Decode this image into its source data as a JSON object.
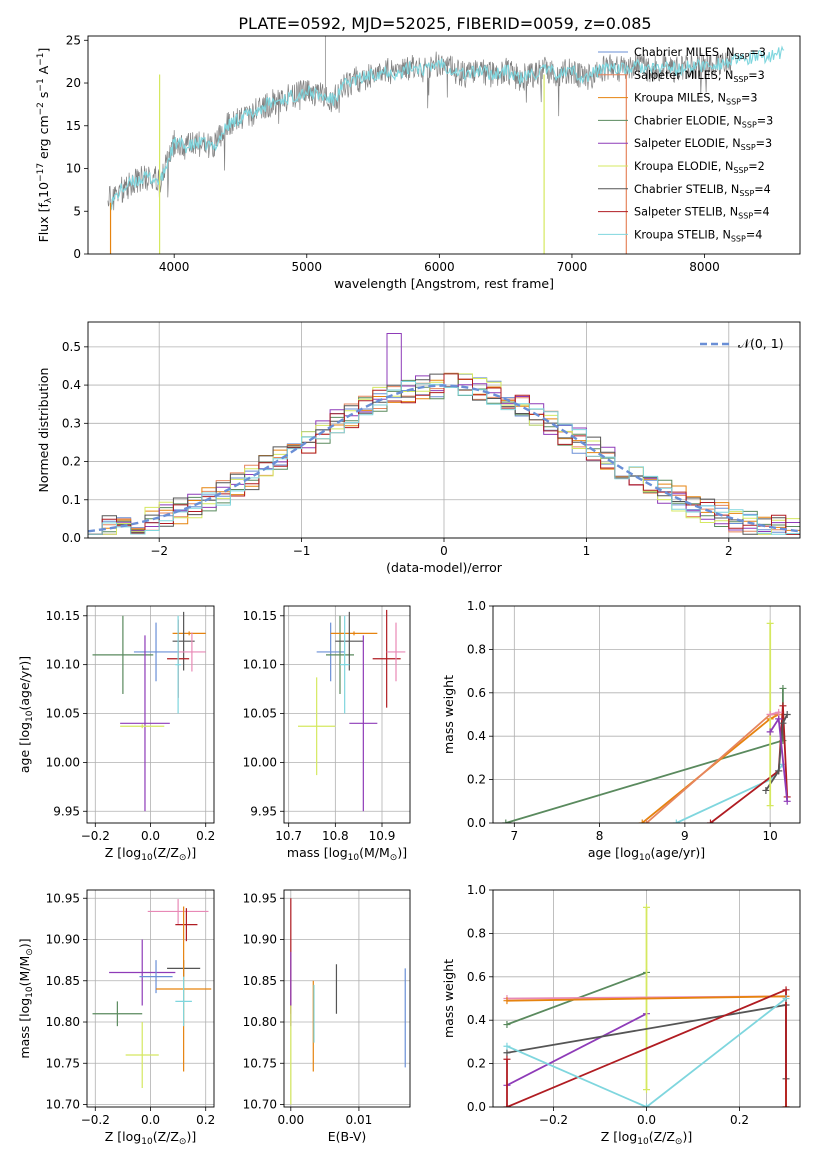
{
  "figure": {
    "title": "PLATE=0592, MJD=52025, FIBERID=0059, z=0.085",
    "colors": {
      "chabrier_miles": "#6a8fd6",
      "salpeter_miles": "#e6855e",
      "kroupa_miles": "#e6830f",
      "chabrier_elodie": "#5a8a5e",
      "salpeter_elodie": "#8e3bb8",
      "kroupa_elodie": "#d5e860",
      "chabrier_stelib": "#555555",
      "salpeter_stelib": "#b01c22",
      "kroupa_stelib": "#7fd6de",
      "data": "#808080",
      "normal": "#6a8fd6",
      "pink": "#e889b6"
    }
  },
  "chart_data": [
    {
      "id": "spectrum",
      "type": "line",
      "xlabel": "wavelength [Angstrom, rest frame]",
      "ylabel": "Flux [f",
      "ylabel_parts": [
        "Flux [f",
        "λ",
        "10",
        "−17",
        " erg cm",
        "−2",
        " s",
        "−1",
        " A",
        "−1",
        "]"
      ],
      "xlim": [
        3350,
        8720
      ],
      "ylim": [
        0,
        25.5
      ],
      "xticks": [
        "4000",
        "5000",
        "6000",
        "7000",
        "8000"
      ],
      "yticks": [
        "0",
        "5",
        "10",
        "15",
        "20",
        "25"
      ],
      "legend_position": "top-right",
      "legend": [
        {
          "label": "Chabrier MILES, N",
          "n": "=3",
          "color": "#6a8fd6"
        },
        {
          "label": "Salpeter MILES, N",
          "n": "=3",
          "color": "#e6855e"
        },
        {
          "label": "Kroupa MILES, N",
          "n": "=3",
          "color": "#e6830f"
        },
        {
          "label": "Chabrier ELODIE, N",
          "n": "=3",
          "color": "#5a8a5e"
        },
        {
          "label": "Salpeter ELODIE, N",
          "n": "=3",
          "color": "#8e3bb8"
        },
        {
          "label": "Kroupa ELODIE, N",
          "n": "=2",
          "color": "#d5e860"
        },
        {
          "label": "Chabrier STELIB, N",
          "n": "=4",
          "color": "#555555"
        },
        {
          "label": "Salpeter STELIB, N",
          "n": "=4",
          "color": "#b01c22"
        },
        {
          "label": "Kroupa STELIB, N",
          "n": "=4",
          "color": "#7fd6de"
        }
      ],
      "legend_sub": "SSP",
      "continuum": [
        [
          3500,
          5.5
        ],
        [
          3600,
          7.5
        ],
        [
          3700,
          8.5
        ],
        [
          3800,
          9
        ],
        [
          3900,
          8.5
        ],
        [
          4000,
          13
        ],
        [
          4100,
          12.5
        ],
        [
          4200,
          13
        ],
        [
          4300,
          12.5
        ],
        [
          4400,
          15
        ],
        [
          4500,
          16
        ],
        [
          4600,
          16.5
        ],
        [
          4700,
          17.5
        ],
        [
          4800,
          18
        ],
        [
          4900,
          18.5
        ],
        [
          5000,
          19
        ],
        [
          5100,
          18.5
        ],
        [
          5200,
          18
        ],
        [
          5300,
          20
        ],
        [
          5400,
          20.5
        ],
        [
          5500,
          21
        ],
        [
          5600,
          21.5
        ],
        [
          5700,
          21
        ],
        [
          5800,
          22
        ],
        [
          5900,
          21.5
        ],
        [
          6000,
          22.5
        ],
        [
          6100,
          21.5
        ],
        [
          6200,
          21
        ],
        [
          6300,
          21.5
        ],
        [
          6400,
          21
        ],
        [
          6500,
          21.5
        ],
        [
          6600,
          20.5
        ],
        [
          6700,
          21
        ],
        [
          6800,
          21.5
        ],
        [
          6900,
          21
        ],
        [
          7000,
          21.5
        ],
        [
          7100,
          20.5
        ],
        [
          7200,
          21.5
        ],
        [
          7300,
          22
        ],
        [
          7400,
          21.5
        ],
        [
          7500,
          22
        ],
        [
          7600,
          21.5
        ],
        [
          7700,
          22
        ],
        [
          7800,
          21.5
        ],
        [
          7900,
          22
        ],
        [
          8000,
          22
        ],
        [
          8200,
          22.5
        ],
        [
          8400,
          23
        ],
        [
          8600,
          23.5
        ]
      ],
      "spikes": [
        [
          6790,
          "#d5e860"
        ],
        [
          7410,
          "#e6855e"
        ],
        [
          3890,
          "#d5e860"
        ]
      ]
    },
    {
      "id": "residuals",
      "type": "histogram",
      "xlabel": "(data-model)/error",
      "ylabel": "Normed distribution",
      "xlim": [
        -2.5,
        2.5
      ],
      "ylim": [
        0,
        0.565
      ],
      "xticks": [
        "−2",
        "−1",
        "0",
        "1",
        "2"
      ],
      "yticks": [
        "0.0",
        "0.1",
        "0.2",
        "0.3",
        "0.4",
        "0.5"
      ],
      "legend_position": "top-right",
      "legend": [
        {
          "label": "𝒩(0, 1)",
          "color": "#6a8fd6"
        }
      ],
      "bin_width": 0.1,
      "series": [
        {
          "name": "Chabrier MILES",
          "color": "#6a8fd6",
          "offset": 0
        },
        {
          "name": "Salpeter MILES",
          "color": "#e6855e",
          "offset": 1
        },
        {
          "name": "Kroupa MILES",
          "color": "#e6830f",
          "offset": 2
        },
        {
          "name": "Chabrier ELODIE",
          "color": "#5a8a5e",
          "offset": 3
        },
        {
          "name": "Salpeter ELODIE",
          "color": "#8e3bb8",
          "offset": 4
        },
        {
          "name": "Kroupa ELODIE",
          "color": "#d5e860",
          "offset": 5
        },
        {
          "name": "Chabrier STELIB",
          "color": "#555555",
          "offset": 6
        },
        {
          "name": "Salpeter STELIB",
          "color": "#b01c22",
          "offset": 7
        },
        {
          "name": "Kroupa STELIB",
          "color": "#7fd6de",
          "offset": 8
        }
      ]
    },
    {
      "id": "age_vs_Z",
      "type": "scatter",
      "xlabel": "Z [log",
      "ylabel": "age  [log",
      "xlim": [
        -0.23,
        0.23
      ],
      "ylim": [
        9.938,
        10.16
      ],
      "xticks": [
        "−0.2",
        "0.0",
        "0.2"
      ],
      "yticks": [
        "9.95",
        "10.00",
        "10.05",
        "10.10",
        "10.15"
      ],
      "points": [
        {
          "x": -0.1,
          "y": 10.11,
          "xe": 0.11,
          "ye": 0.04,
          "color": "#5a8a5e"
        },
        {
          "x": 0.02,
          "y": 10.113,
          "xe": 0.08,
          "ye": 0.03,
          "color": "#6a8fd6"
        },
        {
          "x": -0.02,
          "y": 10.04,
          "xe": 0.09,
          "ye": 0.09,
          "color": "#8e3bb8"
        },
        {
          "x": -0.03,
          "y": 10.037,
          "xe": 0.08,
          "ye": 0.002,
          "color": "#d5e860"
        },
        {
          "x": 0.14,
          "y": 10.132,
          "xe": 0.06,
          "ye": 0.002,
          "color": "#e6830f"
        },
        {
          "x": 0.12,
          "y": 10.124,
          "xe": 0.04,
          "ye": 0.03,
          "color": "#555555"
        },
        {
          "x": 0.15,
          "y": 10.113,
          "xe": 0.05,
          "ye": 0.02,
          "color": "#e889b6"
        },
        {
          "x": 0.1,
          "y": 10.106,
          "xe": 0.04,
          "ye": 0.04,
          "color": "#b01c22"
        },
        {
          "x": 0.1,
          "y": 10.1,
          "xe": 0.01,
          "ye": 0.05,
          "color": "#7fd6de"
        }
      ]
    },
    {
      "id": "age_vs_mass",
      "type": "scatter",
      "xlabel": "mass [log",
      "ylabel": "",
      "xlim": [
        10.69,
        10.96
      ],
      "ylim": [
        9.938,
        10.16
      ],
      "xticks": [
        "10.7",
        "10.8",
        "10.9"
      ],
      "yticks": [
        "9.95",
        "10.00",
        "10.05",
        "10.10",
        "10.15"
      ],
      "points": [
        {
          "x": 10.76,
          "y": 10.037,
          "xe": 0.04,
          "ye": 0.05,
          "color": "#d5e860"
        },
        {
          "x": 10.79,
          "y": 10.113,
          "xe": 0.03,
          "ye": 0.03,
          "color": "#6a8fd6"
        },
        {
          "x": 10.81,
          "y": 10.11,
          "xe": 0.03,
          "ye": 0.04,
          "color": "#5a8a5e"
        },
        {
          "x": 10.84,
          "y": 10.132,
          "xe": 0.05,
          "ye": 0.002,
          "color": "#e6830f"
        },
        {
          "x": 10.83,
          "y": 10.124,
          "xe": 0.03,
          "ye": 0.03,
          "color": "#555555"
        },
        {
          "x": 10.82,
          "y": 10.1,
          "xe": 0.01,
          "ye": 0.05,
          "color": "#7fd6de"
        },
        {
          "x": 10.86,
          "y": 10.04,
          "xe": 0.03,
          "ye": 0.09,
          "color": "#8e3bb8"
        },
        {
          "x": 10.91,
          "y": 10.106,
          "xe": 0.03,
          "ye": 0.05,
          "color": "#b01c22"
        },
        {
          "x": 10.93,
          "y": 10.113,
          "xe": 0.02,
          "ye": 0.03,
          "color": "#e889b6"
        }
      ]
    },
    {
      "id": "weight_vs_age",
      "type": "line",
      "xlabel": "age  [log",
      "ylabel": "mass weight",
      "xlim": [
        6.75,
        10.35
      ],
      "ylim": [
        0,
        1
      ],
      "xticks": [
        "7",
        "8",
        "9",
        "10"
      ],
      "yticks": [
        "0.0",
        "0.2",
        "0.4",
        "0.6",
        "0.8",
        "1.0"
      ],
      "series": [
        {
          "name": "Chabrier ELODIE",
          "color": "#5a8a5e",
          "x": [
            6.9,
            10.15,
            10.15
          ],
          "y": [
            0,
            0.38,
            0.62
          ]
        },
        {
          "name": "Kroupa MILES",
          "color": "#e6830f",
          "x": [
            8.5,
            10.0,
            10.1
          ],
          "y": [
            0,
            0.48,
            0.5
          ]
        },
        {
          "name": "Salpeter MILES",
          "color": "#e6855e",
          "x": [
            8.55,
            10.0,
            10.1
          ],
          "y": [
            0,
            0.5,
            0.5
          ]
        },
        {
          "name": "Kroupa STELIB",
          "color": "#7fd6de",
          "x": [
            8.9,
            10.0,
            10.15
          ],
          "y": [
            0,
            0.2,
            0.27
          ]
        },
        {
          "name": "Salpeter STELIB",
          "color": "#b01c22",
          "x": [
            9.3,
            10.1,
            10.15,
            10.2
          ],
          "y": [
            0,
            0.24,
            0.54,
            0.12
          ]
        },
        {
          "name": "Chabrier STELIB",
          "color": "#555555",
          "x": [
            9.95,
            10.1,
            10.15,
            10.2
          ],
          "y": [
            0.15,
            0.24,
            0.46,
            0.5
          ]
        },
        {
          "name": "Kroupa ELODIE",
          "color": "#d5e860",
          "x": [
            10.0,
            10.0
          ],
          "y": [
            0.08,
            0.92
          ]
        },
        {
          "name": "Salpeter ELODIE",
          "color": "#8e3bb8",
          "x": [
            10.0,
            10.1,
            10.2
          ],
          "y": [
            0.42,
            0.48,
            0.1
          ]
        },
        {
          "name": "Chabrier MILES",
          "color": "#e889b6",
          "x": [
            10.0,
            10.1
          ],
          "y": [
            0.5,
            0.51
          ]
        }
      ]
    },
    {
      "id": "mass_vs_Z",
      "type": "scatter",
      "xlabel": "Z [log",
      "ylabel": "mass [log",
      "xlim": [
        -0.23,
        0.23
      ],
      "ylim": [
        10.697,
        10.96
      ],
      "xticks": [
        "−0.2",
        "0.0",
        "0.2"
      ],
      "yticks": [
        "10.70",
        "10.75",
        "10.80",
        "10.85",
        "10.90",
        "10.95"
      ],
      "points": [
        {
          "x": -0.12,
          "y": 10.81,
          "xe": 0.09,
          "ye": 0.015,
          "color": "#5a8a5e"
        },
        {
          "x": -0.03,
          "y": 10.76,
          "xe": 0.06,
          "ye": 0.04,
          "color": "#d5e860"
        },
        {
          "x": -0.03,
          "y": 10.86,
          "xe": 0.12,
          "ye": 0.04,
          "color": "#8e3bb8"
        },
        {
          "x": 0.02,
          "y": 10.855,
          "xe": 0.06,
          "ye": 0.02,
          "color": "#6a8fd6"
        },
        {
          "x": 0.1,
          "y": 10.934,
          "xe": 0.11,
          "ye": 0.015,
          "color": "#e889b6"
        },
        {
          "x": 0.13,
          "y": 10.918,
          "xe": 0.04,
          "ye": 0.02,
          "color": "#b01c22"
        },
        {
          "x": 0.12,
          "y": 10.865,
          "xe": 0.06,
          "ye": 0.01,
          "color": "#555555"
        },
        {
          "x": 0.12,
          "y": 10.84,
          "xe": 0.1,
          "ye": 0.1,
          "color": "#e6830f"
        },
        {
          "x": 0.12,
          "y": 10.825,
          "xe": 0.03,
          "ye": 0.03,
          "color": "#7fd6de"
        }
      ]
    },
    {
      "id": "mass_vs_ebv",
      "type": "scatter",
      "xlabel": "E(B-V)",
      "ylabel": "",
      "xlim": [
        -0.001,
        0.0175
      ],
      "ylim": [
        10.697,
        10.96
      ],
      "xticks": [
        "0.00",
        "0.01"
      ],
      "yticks": [
        "10.70",
        "10.75",
        "10.80",
        "10.85",
        "10.90",
        "10.95"
      ],
      "points": [
        {
          "x": 0.0,
          "y": 10.88,
          "xe": 0.0,
          "ye": 0.07,
          "color": "#b01c22"
        },
        {
          "x": 0.0,
          "y": 10.84,
          "xe": 0.0,
          "ye": 0.045,
          "color": "#8e3bb8"
        },
        {
          "x": 0.0,
          "y": 10.76,
          "xe": 0.0,
          "ye": 0.06,
          "color": "#d5e860"
        },
        {
          "x": 0.0033,
          "y": 10.795,
          "xe": 0.0,
          "ye": 0.055,
          "color": "#e6830f"
        },
        {
          "x": 0.0034,
          "y": 10.81,
          "xe": 0.0,
          "ye": 0.035,
          "color": "#7fd6de"
        },
        {
          "x": 0.0067,
          "y": 10.84,
          "xe": 0.0,
          "ye": 0.03,
          "color": "#555555"
        },
        {
          "x": 0.0168,
          "y": 10.805,
          "xe": 0.0,
          "ye": 0.06,
          "color": "#6a8fd6"
        }
      ]
    },
    {
      "id": "weight_vs_Z",
      "type": "line",
      "xlabel": "Z [log",
      "ylabel": "mass weight",
      "xlim": [
        -0.33,
        0.33
      ],
      "ylim": [
        0,
        1
      ],
      "xticks": [
        "−0.2",
        "0.0",
        "0.2"
      ],
      "yticks": [
        "0.0",
        "0.2",
        "0.4",
        "0.6",
        "0.8",
        "1.0"
      ],
      "series": [
        {
          "name": "Chabrier ELODIE",
          "color": "#5a8a5e",
          "x": [
            -0.3,
            0.0
          ],
          "y": [
            0.38,
            0.62
          ]
        },
        {
          "name": "Salpeter ELODIE",
          "color": "#8e3bb8",
          "x": [
            -0.3,
            0.0
          ],
          "y": [
            0.1,
            0.43
          ]
        },
        {
          "name": "Kroupa ELODIE",
          "color": "#d5e860",
          "x": [
            0.0,
            0.0
          ],
          "y": [
            0.08,
            0.92
          ]
        },
        {
          "name": "Chabrier MILES",
          "color": "#e889b6",
          "x": [
            -0.3,
            0.3
          ],
          "y": [
            0.5,
            0.51
          ]
        },
        {
          "name": "Kroupa MILES",
          "color": "#e6830f",
          "x": [
            -0.3,
            0.3,
            0.3
          ],
          "y": [
            0.49,
            0.51,
            0.0
          ]
        },
        {
          "name": "Chabrier STELIB",
          "color": "#555555",
          "x": [
            -0.3,
            0.3,
            0.3
          ],
          "y": [
            0.25,
            0.47,
            0.13
          ]
        },
        {
          "name": "Salpeter STELIB",
          "color": "#b01c22",
          "x": [
            -0.3,
            -0.3,
            0.3,
            0.3
          ],
          "y": [
            0.22,
            0.0,
            0.54,
            0.0
          ]
        },
        {
          "name": "Kroupa STELIB",
          "color": "#7fd6de",
          "x": [
            -0.3,
            0.0,
            0.3
          ],
          "y": [
            0.28,
            0.0,
            0.5
          ]
        }
      ]
    }
  ]
}
